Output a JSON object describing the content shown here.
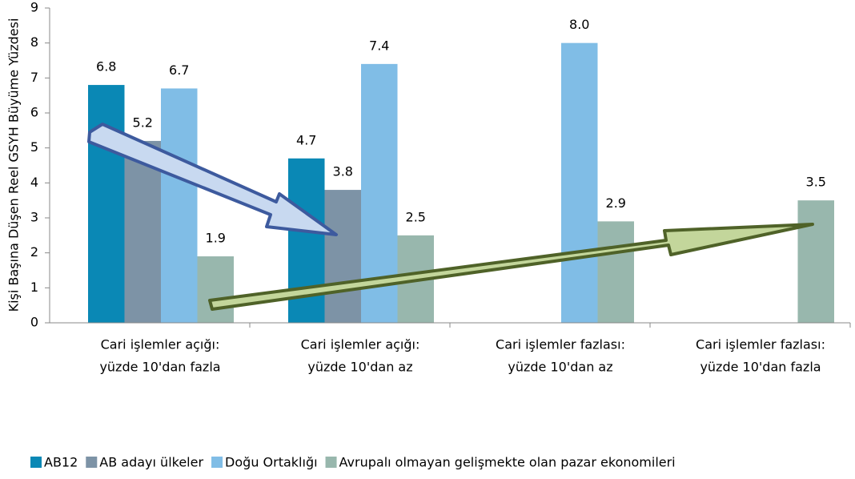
{
  "chart_data": {
    "type": "bar",
    "ylabel": "Kişi Başına Düşen Reel GSYH Büyüme Yüzdesi",
    "categories": [
      [
        "Cari işlemler açığı:",
        "yüzde 10'dan fazla"
      ],
      [
        "Cari işlemler açığı:",
        "yüzde 10'dan az"
      ],
      [
        "Cari işlemler fazlası:",
        "yüzde 10'dan az"
      ],
      [
        "Cari işlemler fazlası:",
        "yüzde 10'dan fazla"
      ]
    ],
    "series": [
      {
        "name": "AB12",
        "color": "#0a88b5",
        "values": [
          6.8,
          4.7,
          null,
          null
        ]
      },
      {
        "name": "AB adayı ülkeler",
        "color": "#7d93a6",
        "values": [
          5.2,
          3.8,
          null,
          null
        ]
      },
      {
        "name": "Doğu Ortaklığı",
        "color": "#80bde6",
        "values": [
          6.7,
          7.4,
          8.0,
          null
        ],
        "value_labels": [
          "6.7",
          "7.4",
          "8.0",
          null
        ]
      },
      {
        "name": "Avrupalı olmayan gelişmekte olan pazar ekonomileri",
        "color": "#98b7ad",
        "values": [
          1.9,
          2.5,
          2.9,
          3.5
        ]
      }
    ],
    "ylim": [
      0,
      9
    ],
    "yticks": [
      0,
      1,
      2,
      3,
      4,
      5,
      6,
      7,
      8,
      9
    ],
    "grid": false,
    "legend": "bottom"
  }
}
